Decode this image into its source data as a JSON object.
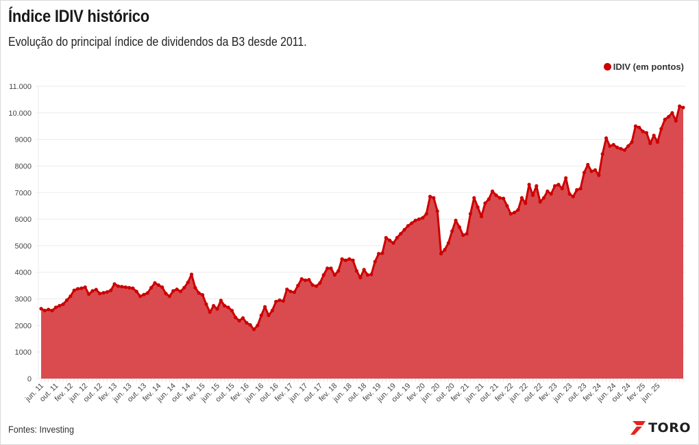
{
  "header": {
    "title": "Índice IDIV histórico",
    "subtitle": "Evolução do principal índice de dividendos da B3 desde 2011."
  },
  "legend": {
    "label": "IDIV (em pontos)",
    "color": "#cc0000"
  },
  "footer": {
    "source": "Fontes: Investing",
    "brand": "TORO"
  },
  "colors": {
    "line": "#cc0000",
    "area": "#d94b4f",
    "grid": "#ebebeb",
    "brand_red": "#e52421"
  },
  "chart_data": {
    "type": "area",
    "title": "Índice IDIV histórico",
    "subtitle": "Evolução do principal índice de dividendos da B3 desde 2011.",
    "xlabel": "",
    "ylabel": "",
    "ylim": [
      0,
      11000
    ],
    "yticks": [
      0,
      1000,
      2000,
      3000,
      4000,
      5000,
      6000,
      7000,
      8000,
      9000,
      10000,
      11000
    ],
    "ytick_labels": [
      "0",
      "1000",
      "2000",
      "3000",
      "4000",
      "5000",
      "6000",
      "7000",
      "8000",
      "9000",
      "10.000",
      "11.000"
    ],
    "grid": true,
    "legend_position": "top-right",
    "x_tick_labels": [
      "jun. 11",
      "out. 11",
      "fev. 12",
      "jun. 12",
      "out. 12",
      "fev. 13",
      "jun. 13",
      "out. 13",
      "fev. 14",
      "jun. 14",
      "out. 14",
      "fev. 15",
      "jun. 15",
      "out. 15",
      "fev. 16",
      "jun. 16",
      "out. 16",
      "fev. 17",
      "jun. 17",
      "out. 17",
      "fev. 18",
      "jun. 18",
      "out. 18",
      "fev. 19",
      "jun. 19",
      "out. 19",
      "fev. 20",
      "jun. 20",
      "out. 20",
      "fev. 21",
      "jun. 21",
      "out. 21",
      "fev. 22",
      "jun. 22",
      "out. 22",
      "fev. 23",
      "jun. 23",
      "out. 23",
      "fev. 24",
      "jun. 24",
      "out. 24",
      "fev. 25",
      "jun. 25"
    ],
    "series": [
      {
        "name": "IDIV (em pontos)",
        "frequency": "monthly",
        "start": "jun. 11",
        "values": [
          2630,
          2560,
          2600,
          2560,
          2680,
          2740,
          2800,
          2950,
          3100,
          3320,
          3380,
          3400,
          3440,
          3180,
          3300,
          3350,
          3200,
          3230,
          3260,
          3320,
          3560,
          3480,
          3460,
          3440,
          3420,
          3400,
          3280,
          3100,
          3160,
          3220,
          3420,
          3600,
          3520,
          3440,
          3200,
          3100,
          3300,
          3360,
          3280,
          3420,
          3620,
          3920,
          3420,
          3220,
          3150,
          2800,
          2500,
          2740,
          2620,
          2940,
          2740,
          2680,
          2560,
          2300,
          2180,
          2280,
          2100,
          2020,
          1850,
          2000,
          2380,
          2700,
          2380,
          2560,
          2900,
          2950,
          2920,
          3360,
          3280,
          3250,
          3500,
          3750,
          3700,
          3720,
          3520,
          3480,
          3600,
          3900,
          4150,
          4150,
          3900,
          4050,
          4500,
          4450,
          4500,
          4450,
          4050,
          3800,
          4100,
          3900,
          3920,
          4400,
          4700,
          4720,
          5300,
          5200,
          5100,
          5300,
          5450,
          5600,
          5750,
          5850,
          5950,
          6000,
          6050,
          6200,
          6850,
          6800,
          6300,
          4700,
          4850,
          5100,
          5550,
          5950,
          5700,
          5400,
          5450,
          6200,
          6800,
          6450,
          6100,
          6600,
          6750,
          7050,
          6900,
          6800,
          6780,
          6500,
          6200,
          6250,
          6350,
          6800,
          6600,
          7300,
          6900,
          7250,
          6650,
          6800,
          7050,
          6950,
          7250,
          7300,
          7150,
          7550,
          6950,
          6850,
          7100,
          7150,
          7750,
          8050,
          7800,
          7850,
          7650,
          8450,
          9050,
          8750,
          8800,
          8700,
          8650,
          8600,
          8750,
          8900,
          9500,
          9450,
          9300,
          9250,
          8850,
          9150,
          8900,
          9400,
          9750,
          9850,
          10000,
          9700,
          10250,
          10200
        ]
      }
    ]
  }
}
